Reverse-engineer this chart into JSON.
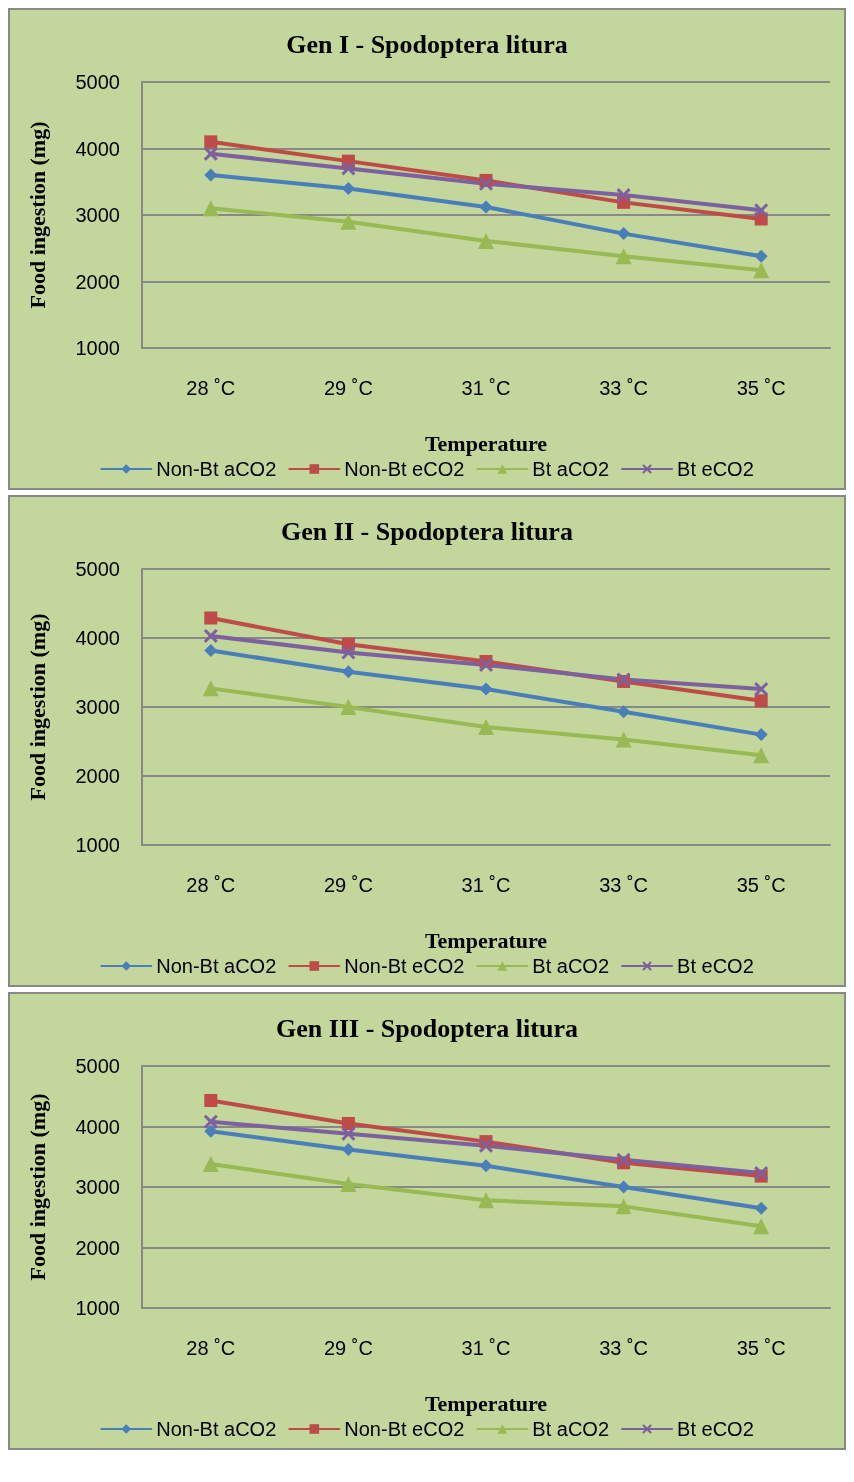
{
  "chart_data": [
    {
      "type": "line",
      "title": "Gen I - Spodoptera litura",
      "xlabel": "Temperature",
      "ylabel": "Food ingestion (mg)",
      "categories": [
        "28 ˚C",
        "29 ˚C",
        "31 ˚C",
        "33 ˚C",
        "35 ˚C"
      ],
      "ylim": [
        1000,
        5000
      ],
      "yticks": [
        1000,
        2000,
        3000,
        4000,
        5000
      ],
      "grid": "y",
      "legend": "bottom",
      "series": [
        {
          "name": "Non-Bt aCO2",
          "color": "#4a7ebb",
          "marker": "diamond",
          "values": [
            3600,
            3400,
            3120,
            2720,
            2380
          ]
        },
        {
          "name": "Non-Bt eCO2",
          "color": "#be4b48",
          "marker": "square",
          "values": [
            4100,
            3810,
            3520,
            3190,
            2940
          ]
        },
        {
          "name": "Bt aCO2",
          "color": "#98b954",
          "marker": "triangle",
          "values": [
            3100,
            2900,
            2610,
            2380,
            2170
          ]
        },
        {
          "name": "Bt eCO2",
          "color": "#7d60a0",
          "marker": "cross",
          "values": [
            3920,
            3700,
            3470,
            3300,
            3070
          ]
        }
      ]
    },
    {
      "type": "line",
      "title": "Gen II - Spodoptera litura",
      "xlabel": "Temperature",
      "ylabel": "Food ingestion (mg)",
      "categories": [
        "28 ˚C",
        "29 ˚C",
        "31 ˚C",
        "33 ˚C",
        "35 ˚C"
      ],
      "ylim": [
        1000,
        5000
      ],
      "yticks": [
        1000,
        2000,
        3000,
        4000,
        5000
      ],
      "grid": "y",
      "legend": "bottom",
      "series": [
        {
          "name": "Non-Bt aCO2",
          "color": "#4a7ebb",
          "marker": "diamond",
          "values": [
            3820,
            3510,
            3260,
            2930,
            2600
          ]
        },
        {
          "name": "Non-Bt eCO2",
          "color": "#be4b48",
          "marker": "square",
          "values": [
            4290,
            3910,
            3660,
            3370,
            3090
          ]
        },
        {
          "name": "Bt aCO2",
          "color": "#98b954",
          "marker": "triangle",
          "values": [
            3270,
            3000,
            2710,
            2530,
            2300
          ]
        },
        {
          "name": "Bt eCO2",
          "color": "#7d60a0",
          "marker": "cross",
          "values": [
            4030,
            3790,
            3610,
            3400,
            3260
          ]
        }
      ]
    },
    {
      "type": "line",
      "title": "Gen III - Spodoptera litura",
      "xlabel": "Temperature",
      "ylabel": "Food ingestion (mg)",
      "categories": [
        "28 ˚C",
        "29 ˚C",
        "31 ˚C",
        "33 ˚C",
        "35 ˚C"
      ],
      "ylim": [
        1000,
        5000
      ],
      "yticks": [
        1000,
        2000,
        3000,
        4000,
        5000
      ],
      "grid": "y",
      "legend": "bottom",
      "series": [
        {
          "name": "Non-Bt aCO2",
          "color": "#4a7ebb",
          "marker": "diamond",
          "values": [
            3920,
            3620,
            3350,
            3000,
            2650
          ]
        },
        {
          "name": "Non-Bt eCO2",
          "color": "#be4b48",
          "marker": "square",
          "values": [
            4430,
            4050,
            3750,
            3400,
            3180
          ]
        },
        {
          "name": "Bt aCO2",
          "color": "#98b954",
          "marker": "triangle",
          "values": [
            3380,
            3050,
            2780,
            2680,
            2350
          ]
        },
        {
          "name": "Bt eCO2",
          "color": "#7d60a0",
          "marker": "cross",
          "values": [
            4080,
            3880,
            3680,
            3450,
            3230
          ]
        }
      ]
    }
  ]
}
